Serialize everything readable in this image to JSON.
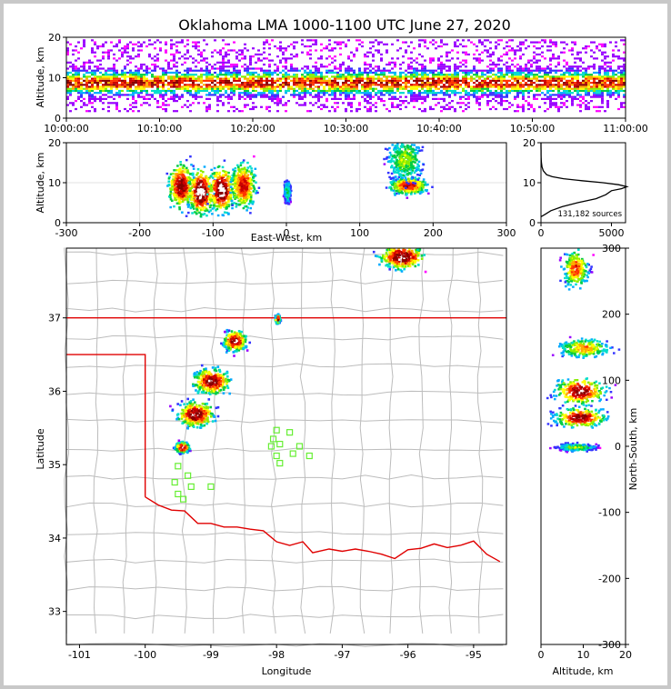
{
  "chart_data": [
    {
      "type": "heatmap",
      "panel": "altitude-time",
      "title": "Oklahoma LMA 1000-1100 UTC June 27, 2020",
      "xlabel": "",
      "ylabel": "Altitude, km",
      "xlim": [
        "10:00:00",
        "11:00:00"
      ],
      "ylim": [
        0,
        20
      ],
      "xticks": [
        "10:00:00",
        "10:10:00",
        "10:20:00",
        "10:30:00",
        "10:40:00",
        "10:50:00",
        "11:00:00"
      ],
      "yticks": [
        0,
        10,
        20
      ],
      "source_altitude_band_km": [
        2,
        18
      ],
      "dense_core_altitude_km": [
        6,
        11
      ]
    },
    {
      "type": "heatmap",
      "panel": "east-west-altitude",
      "xlabel": "East-West, km",
      "ylabel": "Altitude, km",
      "xlim": [
        -300,
        300
      ],
      "ylim": [
        0,
        20
      ],
      "xticks": [
        -300,
        -200,
        -100,
        0,
        100,
        200,
        300
      ],
      "yticks": [
        0,
        10,
        20
      ],
      "clusters": [
        {
          "x_range": [
            -165,
            -40
          ],
          "alt_range": [
            2,
            20
          ]
        },
        {
          "x_range": [
            -5,
            5
          ],
          "alt_range": [
            6,
            12
          ]
        },
        {
          "x_range": [
            115,
            205
          ],
          "alt_range": [
            6,
            20
          ]
        }
      ]
    },
    {
      "type": "line",
      "panel": "altitude-histogram",
      "annotation": "131,182 sources",
      "xlim": [
        0,
        6000
      ],
      "ylim": [
        0,
        20
      ],
      "xticks": [
        0,
        5000
      ],
      "yticks": [
        0,
        10,
        20
      ],
      "series": [
        {
          "altitude": [
            1.5,
            2,
            3,
            4,
            5,
            6,
            7,
            8,
            8.5,
            9,
            9.5,
            10,
            10.5,
            11,
            11.5,
            12,
            13,
            14,
            15,
            16,
            17,
            18,
            19,
            20
          ],
          "count": [
            0,
            250,
            700,
            1500,
            2600,
            3900,
            4600,
            5000,
            5700,
            6100,
            5500,
            4400,
            2900,
            1600,
            800,
            400,
            160,
            70,
            35,
            15,
            8,
            4,
            2,
            0
          ]
        }
      ]
    },
    {
      "type": "heatmap",
      "panel": "plan-view",
      "xlabel": "Longitude",
      "ylabel": "Latitude",
      "xlim": [
        -101.2,
        -94.5
      ],
      "ylim": [
        32.55,
        37.95
      ],
      "xticks": [
        -101,
        -100,
        -99,
        -98,
        -97,
        -96,
        -95
      ],
      "yticks": [
        33,
        34,
        35,
        36,
        37
      ],
      "colors": {
        "state_border": "#e00000",
        "county_lines": "#bcbcbc",
        "stations": "#66ee33"
      },
      "stations": [
        [
          -99.5,
          34.98
        ],
        [
          -99.35,
          34.85
        ],
        [
          -99.55,
          34.76
        ],
        [
          -99.3,
          34.7
        ],
        [
          -99.5,
          34.6
        ],
        [
          -99.42,
          34.53
        ],
        [
          -99.0,
          34.7
        ],
        [
          -98.0,
          35.47
        ],
        [
          -98.05,
          35.35
        ],
        [
          -98.08,
          35.25
        ],
        [
          -97.95,
          35.28
        ],
        [
          -97.8,
          35.44
        ],
        [
          -97.65,
          35.25
        ],
        [
          -97.75,
          35.15
        ],
        [
          -97.5,
          35.12
        ],
        [
          -98.0,
          35.12
        ],
        [
          -97.95,
          35.02
        ]
      ],
      "clusters": [
        {
          "lon": -96.1,
          "lat": 37.85,
          "extent": [
            -96.6,
            -95.6,
            37.45,
            37.95
          ]
        },
        {
          "lon": -98.65,
          "lat": 36.7,
          "extent": [
            -98.9,
            -98.4,
            36.5,
            36.9
          ]
        },
        {
          "lon": -99.0,
          "lat": 36.15,
          "extent": [
            -99.4,
            -98.6,
            35.9,
            36.4
          ]
        },
        {
          "lon": -99.25,
          "lat": 35.7,
          "extent": [
            -99.7,
            -98.9,
            35.45,
            35.95
          ]
        },
        {
          "lon": -99.45,
          "lat": 35.25,
          "extent": [
            -99.6,
            -99.3,
            35.15,
            35.35
          ]
        },
        {
          "lon": -98.0,
          "lat": 37.0,
          "extent": [
            -98.05,
            -97.95,
            36.95,
            37.1
          ]
        }
      ]
    },
    {
      "type": "heatmap",
      "panel": "altitude-north-south",
      "xlabel": "Altitude, km",
      "ylabel": "North-South, km",
      "xlim": [
        0,
        20
      ],
      "ylim": [
        -300,
        300
      ],
      "xticks": [
        0,
        10,
        20
      ],
      "yticks": [
        -300,
        -200,
        -100,
        0,
        100,
        200,
        300
      ],
      "clusters": [
        {
          "ns_range": [
            -10,
            5
          ],
          "alt_range": [
            1,
            20
          ]
        },
        {
          "ns_range": [
            20,
            165
          ],
          "alt_range": [
            1,
            20
          ]
        },
        {
          "ns_range": [
            235,
            300
          ],
          "alt_range": [
            6,
            20
          ]
        }
      ]
    }
  ]
}
